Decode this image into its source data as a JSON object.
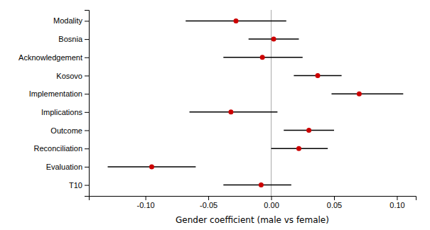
{
  "chart_data": {
    "type": "scatter",
    "orientation": "horizontal",
    "categories": [
      "Modality",
      "Bosnia",
      "Acknowledgement",
      "Kosovo",
      "Implementation",
      "Implications",
      "Outcome",
      "Reconciliation",
      "Evaluation",
      "T10"
    ],
    "values": [
      -0.028,
      0.002,
      -0.007,
      0.037,
      0.07,
      -0.032,
      0.03,
      0.022,
      -0.095,
      -0.008
    ],
    "lower": [
      -0.068,
      -0.018,
      -0.038,
      0.018,
      0.048,
      -0.065,
      0.01,
      0.0,
      -0.13,
      -0.038
    ],
    "upper": [
      0.012,
      0.022,
      0.025,
      0.056,
      0.105,
      0.005,
      0.05,
      0.045,
      -0.06,
      0.016
    ],
    "reference_x": 0,
    "color": "#cc0000",
    "xlabel": "Gender coefficient (male vs female)",
    "xlim": [
      -0.145,
      0.115
    ],
    "xticks": [
      {
        "value": -0.1,
        "label": "-0.10"
      },
      -0.05,
      {
        "value": 0.0,
        "label": "0.00"
      },
      0.05,
      {
        "value": 0.1,
        "label": "0.10"
      }
    ]
  }
}
